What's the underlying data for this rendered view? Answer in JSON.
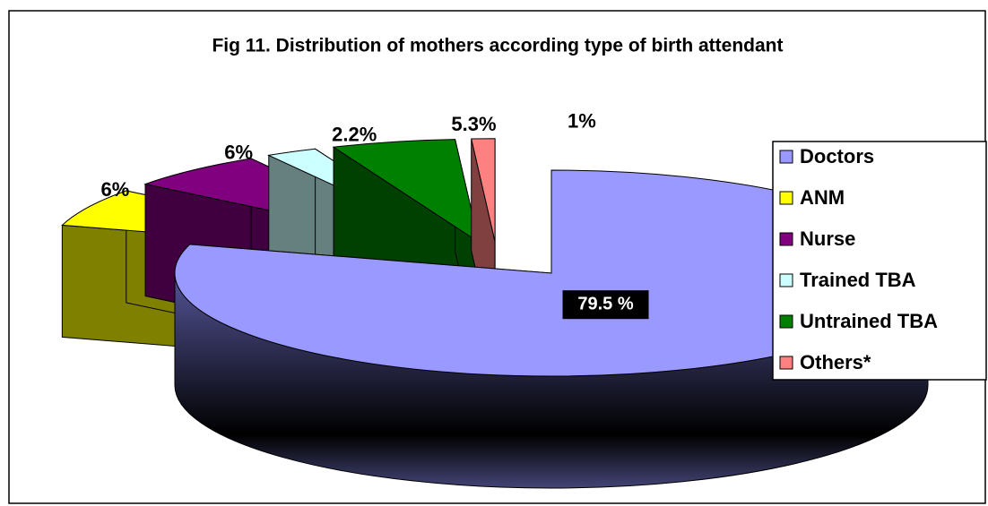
{
  "chart_data": {
    "type": "pie3d",
    "title": "Fig 11. Distribution of mothers according type of birth attendant",
    "categories": [
      "Doctors",
      "ANM",
      "Nurse",
      "Trained TBA",
      "Untrained TBA",
      "Others*"
    ],
    "values": [
      79.5,
      6,
      6,
      2.2,
      5.3,
      1
    ],
    "value_labels": [
      "79.5 %",
      "6%",
      "6%",
      "2.2%",
      "5.3%",
      "1%"
    ],
    "colors": [
      "#9999ff",
      "#ffff00",
      "#800080",
      "#ccffff",
      "#008000",
      "#ff8080"
    ],
    "legend": "right"
  }
}
